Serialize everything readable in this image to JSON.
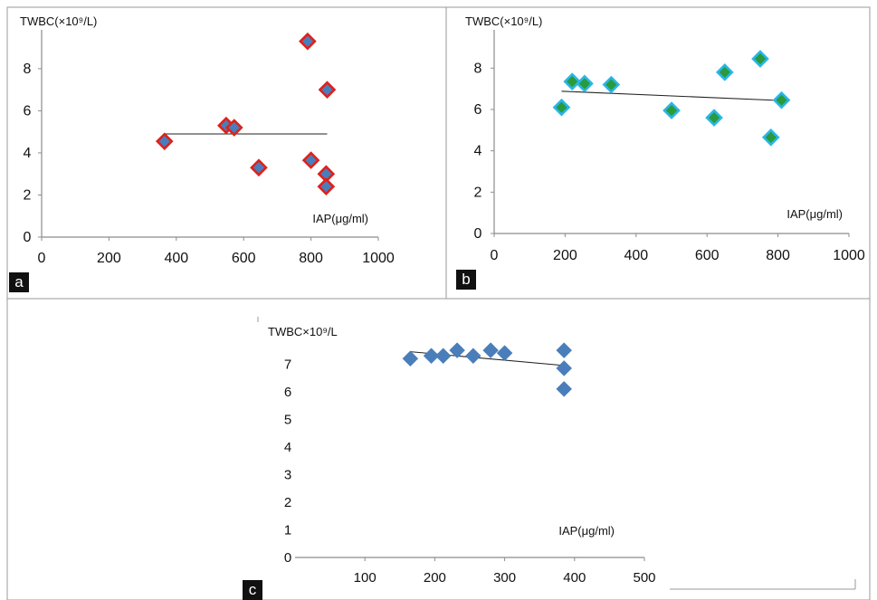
{
  "panel_labels": [
    "a",
    "b",
    "c"
  ],
  "chart_data": [
    {
      "type": "scatter",
      "panel": "a",
      "ylabel": "TWBC(×10⁹/L)",
      "xlabel": "IAP(μg/ml)",
      "xlim": [
        0,
        1000
      ],
      "ylim": [
        0,
        9.5
      ],
      "xticks": [
        0,
        200,
        400,
        600,
        800,
        1000
      ],
      "yticks": [
        0,
        2,
        4,
        6,
        8
      ],
      "marker": {
        "fill": "#4a7ebb",
        "edge": "#e0201b"
      },
      "points": [
        {
          "x": 365,
          "y": 4.55
        },
        {
          "x": 548,
          "y": 5.3
        },
        {
          "x": 572,
          "y": 5.2
        },
        {
          "x": 645,
          "y": 3.3
        },
        {
          "x": 790,
          "y": 9.3
        },
        {
          "x": 800,
          "y": 3.65
        },
        {
          "x": 848,
          "y": 7.0
        },
        {
          "x": 845,
          "y": 3.0
        },
        {
          "x": 845,
          "y": 2.4
        }
      ],
      "trendline": {
        "x": [
          365,
          848
        ],
        "y": [
          4.9,
          4.9
        ]
      }
    },
    {
      "type": "scatter",
      "panel": "b",
      "ylabel": "TWBC(×10⁹/L)",
      "xlabel": "IAP(μg/ml)",
      "xlim": [
        0,
        1000
      ],
      "ylim": [
        0,
        9.5
      ],
      "xticks": [
        0,
        200,
        400,
        600,
        800,
        1000
      ],
      "yticks": [
        0,
        2,
        4,
        6,
        8
      ],
      "marker": {
        "fill": "#2a9b3c",
        "edge": "#29b6e8"
      },
      "points": [
        {
          "x": 190,
          "y": 6.1
        },
        {
          "x": 220,
          "y": 7.35
        },
        {
          "x": 255,
          "y": 7.25
        },
        {
          "x": 330,
          "y": 7.2
        },
        {
          "x": 500,
          "y": 5.95
        },
        {
          "x": 620,
          "y": 5.6
        },
        {
          "x": 650,
          "y": 7.8
        },
        {
          "x": 750,
          "y": 8.45
        },
        {
          "x": 780,
          "y": 4.65
        },
        {
          "x": 810,
          "y": 6.45
        }
      ],
      "trendline": {
        "x": [
          190,
          810
        ],
        "y": [
          6.88,
          6.43
        ]
      }
    },
    {
      "type": "scatter",
      "panel": "c",
      "ylabel": "TWBC×10⁹/L",
      "xlabel": "IAP(μg/ml)",
      "xlim": [
        0,
        500
      ],
      "ylim": [
        0,
        7.7
      ],
      "xticks": [
        100,
        200,
        300,
        400,
        500
      ],
      "yticks": [
        0,
        1,
        2,
        3,
        4,
        5,
        6,
        7
      ],
      "marker": {
        "fill": "#4a7ebb",
        "edge": "#4a7ebb"
      },
      "points": [
        {
          "x": 165,
          "y": 7.2
        },
        {
          "x": 195,
          "y": 7.3
        },
        {
          "x": 212,
          "y": 7.3
        },
        {
          "x": 232,
          "y": 7.5
        },
        {
          "x": 255,
          "y": 7.3
        },
        {
          "x": 280,
          "y": 7.5
        },
        {
          "x": 300,
          "y": 7.4
        },
        {
          "x": 385,
          "y": 7.5
        },
        {
          "x": 385,
          "y": 6.85
        },
        {
          "x": 385,
          "y": 6.1
        }
      ],
      "trendline": {
        "x": [
          165,
          385
        ],
        "y": [
          7.45,
          6.95
        ]
      }
    }
  ]
}
